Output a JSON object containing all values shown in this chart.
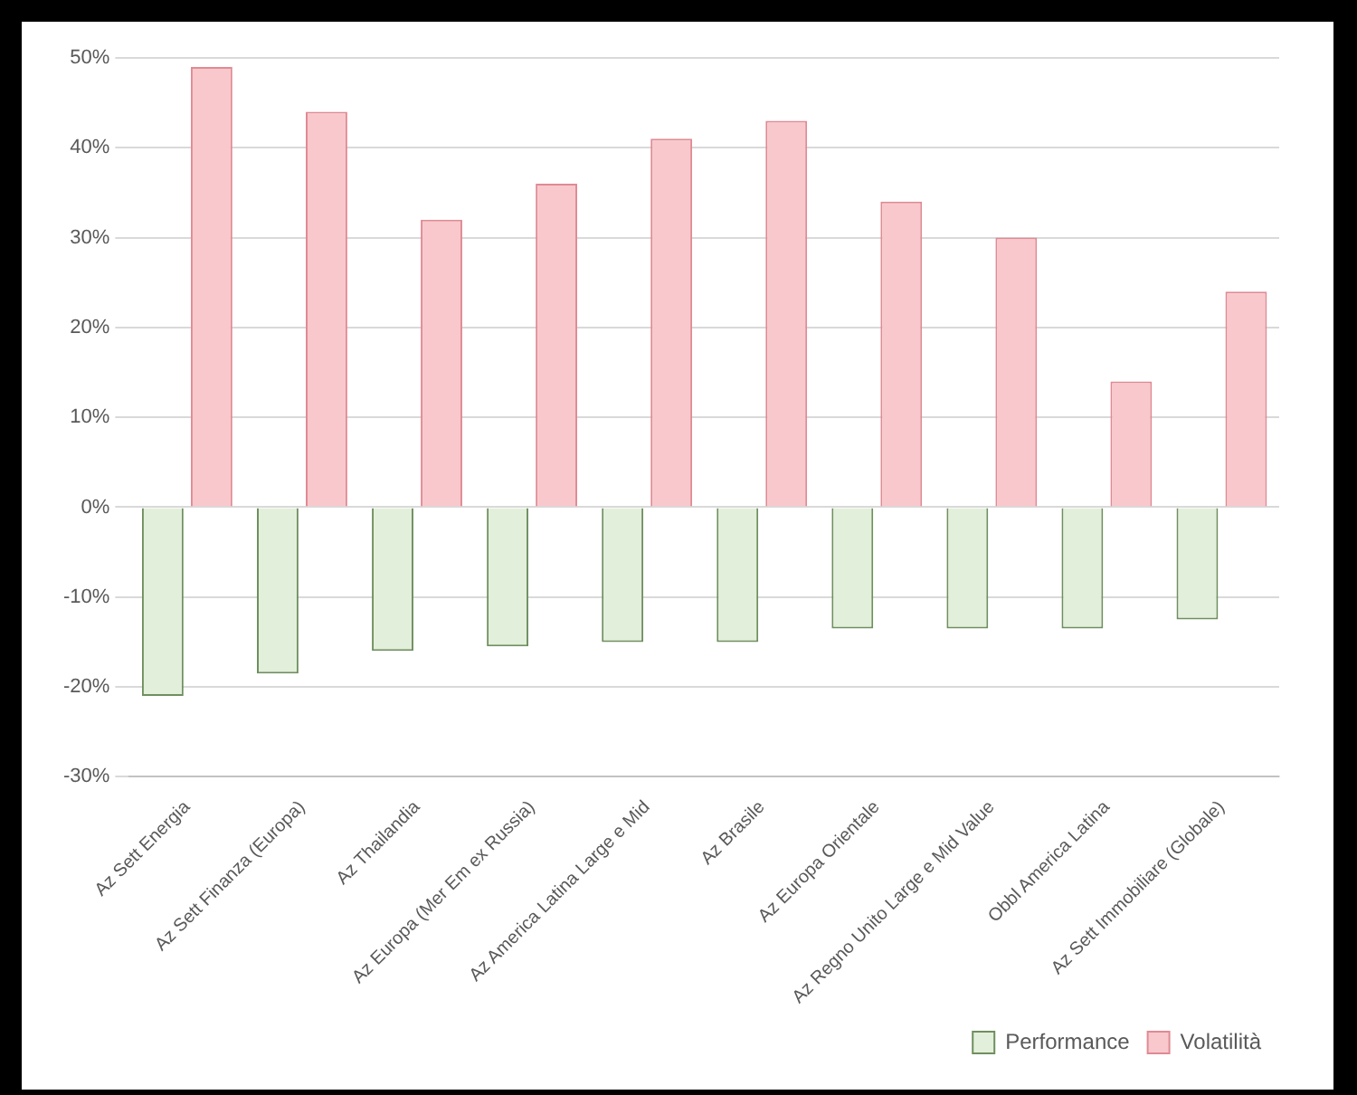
{
  "chart_data": {
    "type": "bar",
    "categories": [
      "Az Sett Energia",
      "Az Sett Finanza (Europa)",
      "Az Thailandia",
      "Az Europa (Mer Em ex Russia)",
      "Az America Latina Large e Mid",
      "Az Brasile",
      "Az Europa Orientale",
      "Az Regno Unito Large e Mid Value",
      "Obbl America Latina",
      "Az Sett Immobiliare (Globale)"
    ],
    "series": [
      {
        "name": "Performance",
        "color": "#e2efda",
        "values": [
          -21,
          -18.5,
          -16,
          -15.5,
          -15,
          -15,
          -13.5,
          -13.5,
          -13.5,
          -12.5
        ]
      },
      {
        "name": "Volatilità",
        "color": "#f8c8cc",
        "values": [
          49,
          44,
          32,
          36,
          41,
          43,
          34,
          30,
          14,
          24
        ]
      }
    ],
    "ylim": [
      -30,
      50
    ],
    "yticks": [
      {
        "value": -30,
        "label": "-30%"
      },
      {
        "value": -20,
        "label": "-20%"
      },
      {
        "value": -10,
        "label": "-10%"
      },
      {
        "value": 0,
        "label": "0%"
      },
      {
        "value": 10,
        "label": "10%"
      },
      {
        "value": 20,
        "label": "20%"
      },
      {
        "value": 30,
        "label": "30%"
      },
      {
        "value": 40,
        "label": "40%"
      },
      {
        "value": 50,
        "label": "50%"
      }
    ],
    "grid": "y",
    "legend": "bottom right"
  }
}
